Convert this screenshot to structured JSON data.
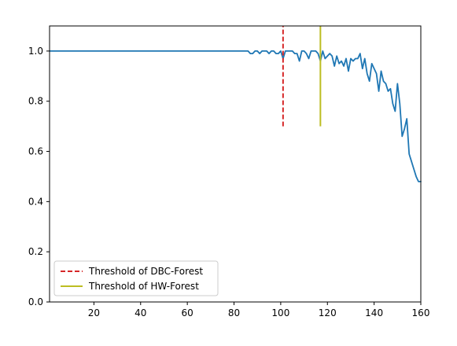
{
  "chart_data": {
    "type": "line",
    "title": "",
    "xlabel": "",
    "ylabel": "",
    "xlim": [
      1,
      160
    ],
    "ylim": [
      0.0,
      1.1
    ],
    "xticks": [
      20,
      40,
      60,
      80,
      100,
      120,
      140,
      160
    ],
    "xtick_labels": [
      "20",
      "40",
      "60",
      "80",
      "100",
      "120",
      "140",
      "160"
    ],
    "yticks": [
      0.0,
      0.2,
      0.4,
      0.6,
      0.8,
      1.0
    ],
    "ytick_labels": [
      "0.0",
      "0.2",
      "0.4",
      "0.6",
      "0.8",
      "1.0"
    ],
    "grid": false,
    "legend_position": "lower-left",
    "series": [
      {
        "color": "#1f77b4",
        "x": [
          1,
          86,
          87,
          88,
          89,
          90,
          91,
          92,
          93,
          94,
          95,
          96,
          97,
          98,
          99,
          100,
          101,
          102,
          103,
          104,
          105,
          106,
          107,
          108,
          109,
          110,
          111,
          112,
          113,
          114,
          115,
          116,
          117,
          118,
          119,
          120,
          121,
          122,
          123,
          124,
          125,
          126,
          127,
          128,
          129,
          130,
          131,
          132,
          133,
          134,
          135,
          136,
          137,
          138,
          139,
          140,
          141,
          142,
          143,
          144,
          145,
          146,
          147,
          148,
          149,
          150,
          151,
          152,
          153,
          154,
          155,
          156,
          157,
          158,
          159,
          160
        ],
        "values": [
          1.0,
          1.0,
          0.99,
          0.99,
          1.0,
          1.0,
          0.99,
          1.0,
          1.0,
          1.0,
          0.99,
          1.0,
          1.0,
          0.99,
          0.99,
          1.0,
          0.97,
          1.0,
          1.0,
          1.0,
          1.0,
          0.99,
          0.99,
          0.96,
          1.0,
          1.0,
          0.99,
          0.97,
          1.0,
          1.0,
          1.0,
          0.99,
          0.96,
          1.0,
          0.97,
          0.98,
          0.99,
          0.98,
          0.94,
          0.98,
          0.95,
          0.96,
          0.94,
          0.97,
          0.92,
          0.97,
          0.96,
          0.97,
          0.97,
          0.99,
          0.93,
          0.97,
          0.91,
          0.88,
          0.95,
          0.93,
          0.91,
          0.84,
          0.92,
          0.88,
          0.87,
          0.84,
          0.85,
          0.79,
          0.76,
          0.87,
          0.79,
          0.66,
          0.69,
          0.73,
          0.59,
          0.56,
          0.53,
          0.5,
          0.48,
          0.48
        ]
      }
    ],
    "reference_lines": [
      {
        "label": "Threshold of DBC-Forest",
        "x": 101,
        "y_range": [
          0.7,
          1.1
        ],
        "color": "#d62728",
        "style": "dashed"
      },
      {
        "label": "Threshold of HW-Forest",
        "x": 117,
        "y_range": [
          0.7,
          1.1
        ],
        "color": "#bcbd22",
        "style": "solid"
      }
    ]
  }
}
